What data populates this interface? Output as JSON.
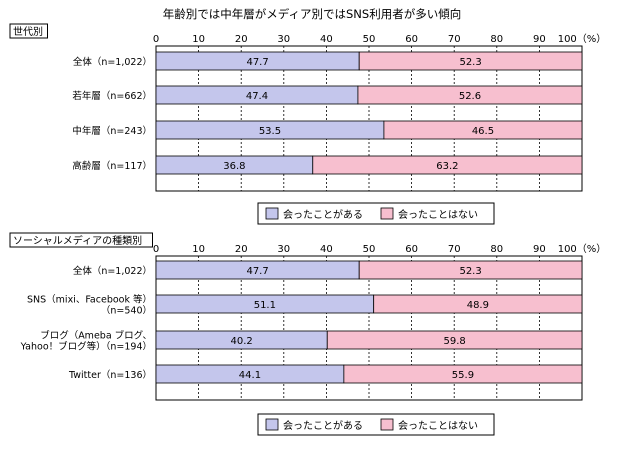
{
  "title": "年齢別では中年層がメディア別ではSNS利用者が多い傾向",
  "colors": {
    "met": "#c4c6ec",
    "not_met": "#f7bfcf",
    "frame": "#000000"
  },
  "chart_data": [
    {
      "type": "bar",
      "orientation": "horizontal",
      "stacked": true,
      "section_label": "世代別",
      "categories": [
        "全体（n=1,022）",
        "若年層（n=662）",
        "中年層（n=243）",
        "高齢層（n=117）"
      ],
      "series": [
        {
          "name": "会ったことがある",
          "values": [
            47.7,
            47.4,
            53.5,
            36.8
          ]
        },
        {
          "name": "会ったことはない",
          "values": [
            52.3,
            52.6,
            46.5,
            63.2
          ]
        }
      ],
      "xlim": [
        0,
        100
      ],
      "xticks": [
        "0",
        "10",
        "20",
        "30",
        "40",
        "50",
        "60",
        "70",
        "80",
        "90",
        "100（%）"
      ],
      "grid": true,
      "legend": "bottom-center"
    },
    {
      "type": "bar",
      "orientation": "horizontal",
      "stacked": true,
      "section_label": "ソーシャルメディアの種類別",
      "categories": [
        "全体（n=1,022）",
        "SNS（mixi、Facebook 等）\n（n=540）",
        "ブログ（Ameba ブログ、\nYahoo！ブログ等）（n=194）",
        "Twitter（n=136）"
      ],
      "series": [
        {
          "name": "会ったことがある",
          "values": [
            47.7,
            51.1,
            40.2,
            44.1
          ]
        },
        {
          "name": "会ったことはない",
          "values": [
            52.3,
            48.9,
            59.8,
            55.9
          ]
        }
      ],
      "xlim": [
        0,
        100
      ],
      "xticks": [
        "0",
        "10",
        "20",
        "30",
        "40",
        "50",
        "60",
        "70",
        "80",
        "90",
        "100（%）"
      ],
      "grid": true,
      "legend": "bottom-center"
    }
  ]
}
